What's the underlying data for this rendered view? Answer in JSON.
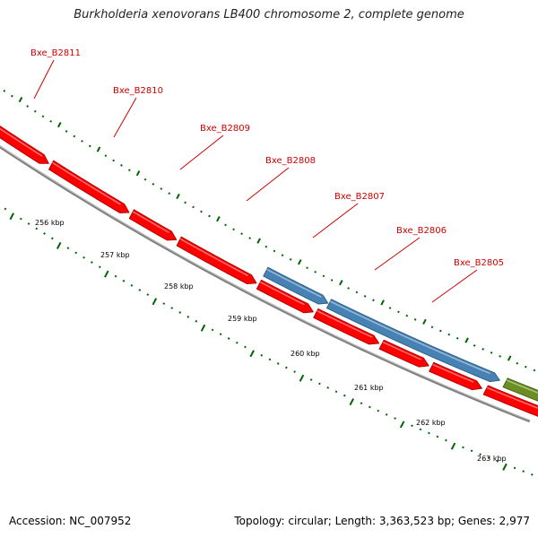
{
  "title": "Burkholderia xenovorans LB400 chromosome 2, complete genome",
  "footer": {
    "accession": "Accession: NC_007952",
    "summary": "Topology: circular; Length: 3,363,523 bp; Genes: 2,977"
  },
  "colors": {
    "forward_gene": "#ff0000",
    "rna_gene": "#4682b4",
    "other_gene": "#6b8e23",
    "label": "#cc0000",
    "backbone": "#808080",
    "ticks": "#006400"
  },
  "genes": [
    {
      "name": "Bxe_B2811",
      "labelled": true
    },
    {
      "name": "Bxe_B2810",
      "labelled": true
    },
    {
      "name": "Bxe_B2809",
      "labelled": true
    },
    {
      "name": "Bxe_B2808",
      "labelled": true
    },
    {
      "name": "Bxe_B2807",
      "labelled": true
    },
    {
      "name": "Bxe_B2806",
      "labelled": true
    },
    {
      "name": "Bxe_B2805",
      "labelled": true
    }
  ],
  "scale_ticks": [
    "256 kbp",
    "257 kbp",
    "258 kbp",
    "259 kbp",
    "260 kbp",
    "261 kbp",
    "262 kbp",
    "263 kbp"
  ]
}
